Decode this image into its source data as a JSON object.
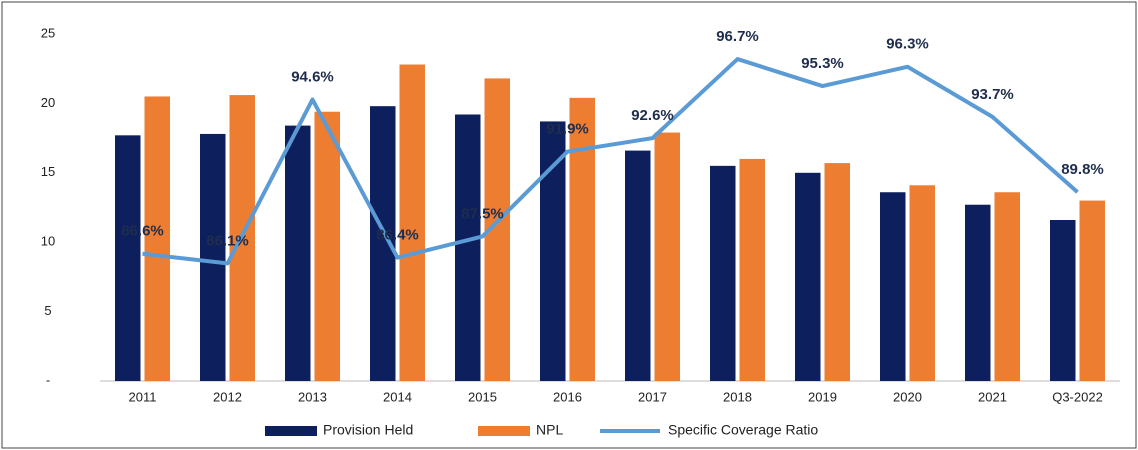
{
  "chart_data": {
    "type": "bar_line",
    "categories": [
      "2011",
      "2012",
      "2013",
      "2014",
      "2015",
      "2016",
      "2017",
      "2018",
      "2019",
      "2020",
      "2021",
      "Q3-2022"
    ],
    "series": [
      {
        "name": "Provision Held",
        "color": "#0d1f5c",
        "values": [
          17.7,
          17.8,
          18.4,
          19.8,
          19.2,
          18.7,
          16.6,
          15.5,
          15.0,
          13.6,
          12.7,
          11.6
        ]
      },
      {
        "name": "NPL",
        "color": "#ed7d31",
        "values": [
          20.5,
          20.6,
          19.4,
          22.8,
          21.8,
          20.4,
          17.9,
          16.0,
          15.7,
          14.1,
          13.6,
          13.0
        ]
      },
      {
        "name": "Specific Coverage Ratio",
        "color": "#5b9bd5",
        "axis": "y2",
        "type": "line",
        "values": [
          86.6,
          86.1,
          94.6,
          86.4,
          87.5,
          91.9,
          92.6,
          96.7,
          95.3,
          96.3,
          93.7,
          89.8
        ],
        "value_labels": [
          "86.6%",
          "86.1%",
          "94.6%",
          "86.4%",
          "87.5%",
          "91.9%",
          "92.6%",
          "96.7%",
          "95.3%",
          "96.3%",
          "93.7%",
          "89.8%"
        ]
      }
    ],
    "ylim": [
      0,
      25
    ],
    "yticks": [
      {
        "value": 0,
        "label": "-"
      },
      5,
      10,
      15,
      20,
      25
    ],
    "y2lim": [
      80,
      98
    ],
    "legend": "bottom"
  }
}
